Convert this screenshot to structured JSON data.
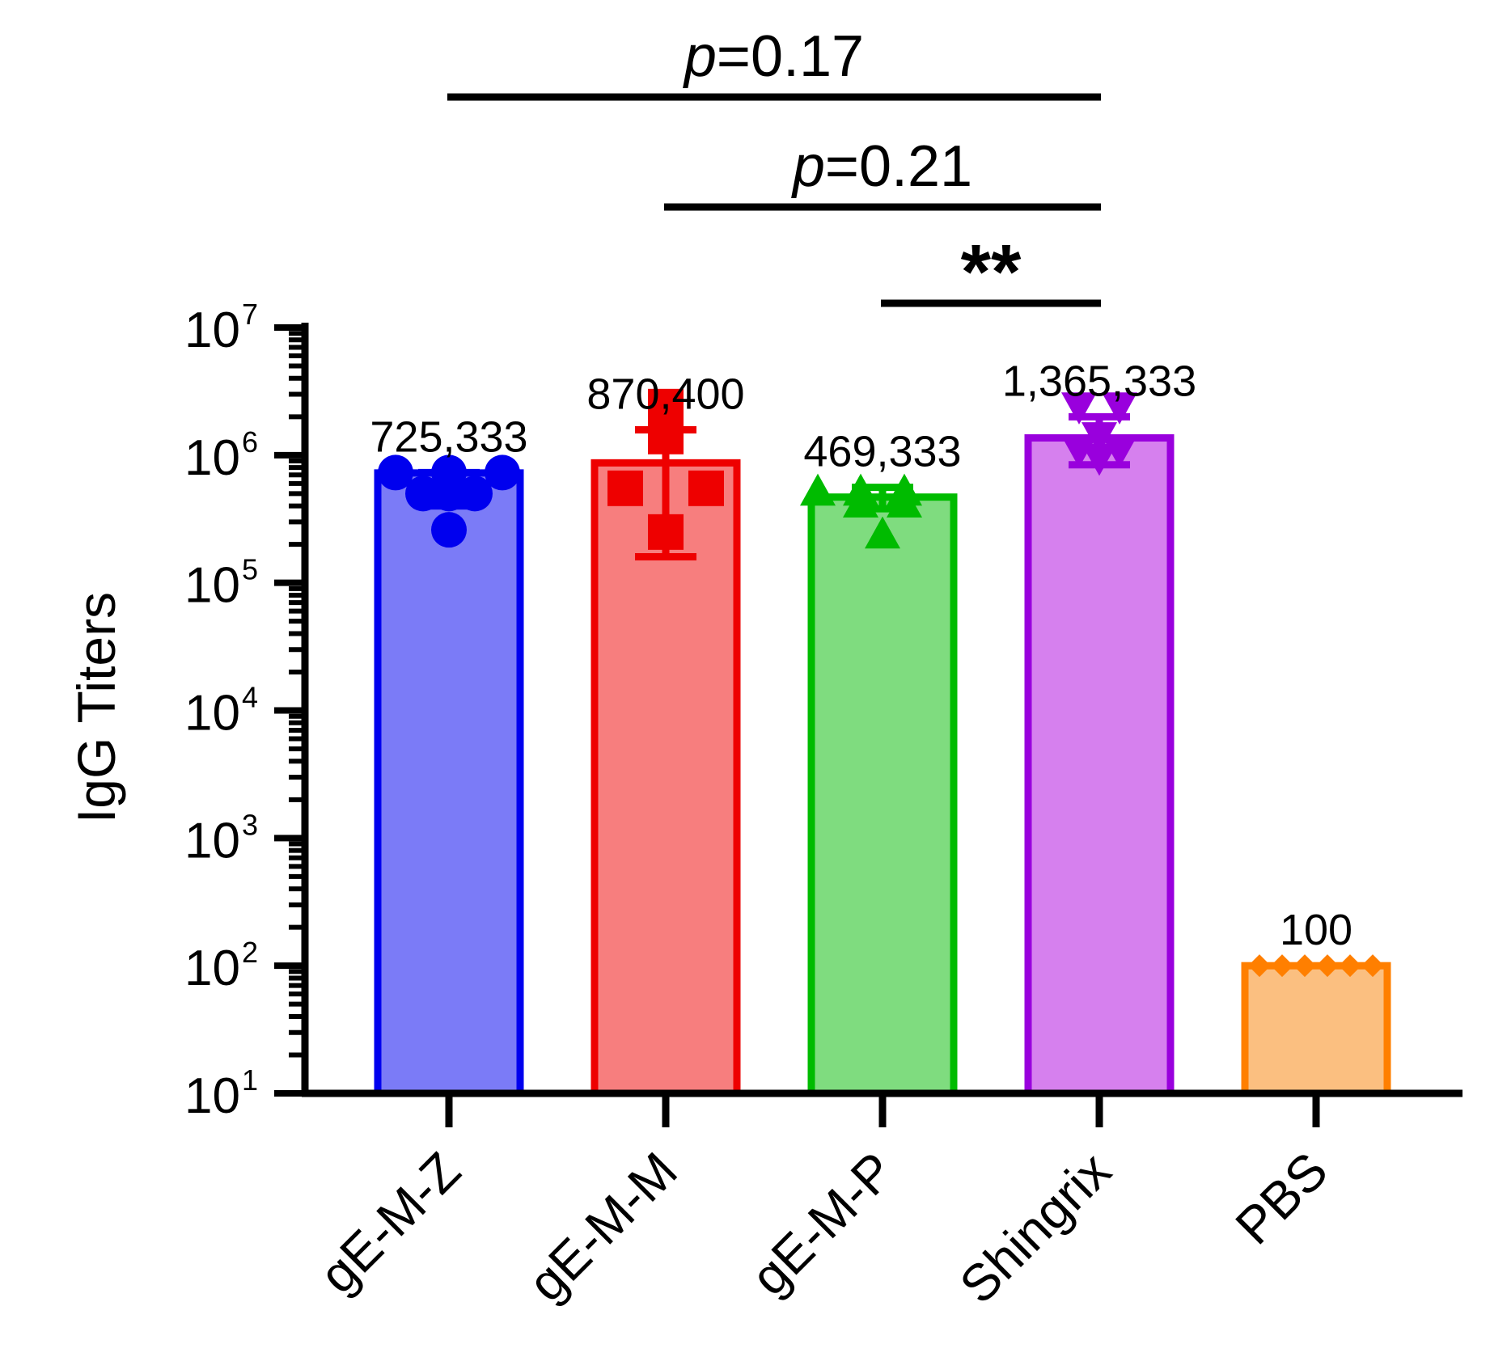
{
  "chart_data": {
    "type": "bar",
    "scale": "log",
    "categories": [
      "gE-M-Z",
      "gE-M-M",
      "gE-M-P",
      "Shingrix",
      "PBS"
    ],
    "values": [
      725333,
      870400,
      469333,
      1365333,
      100
    ],
    "value_labels": [
      "725,333",
      "870,400",
      "469,333",
      "1,365,333",
      "100"
    ],
    "error_bars": [
      {
        "low": 400000,
        "high": 730000
      },
      {
        "low": 160000,
        "high": 1580000
      },
      {
        "low": 380000,
        "high": 560000
      },
      {
        "low": 840000,
        "high": 2000000
      },
      {
        "low": 100,
        "high": 100
      }
    ],
    "points": [
      [
        730000,
        730000,
        730000,
        500000,
        500000,
        500000,
        260000
      ],
      [
        2400000,
        1400000,
        550000,
        550000,
        250000
      ],
      [
        520000,
        520000,
        520000,
        420000,
        420000,
        240000
      ],
      [
        2400000,
        2400000,
        1400000,
        1100000,
        1100000,
        950000
      ],
      [
        100,
        100,
        100,
        100,
        100,
        100
      ]
    ],
    "markers": [
      "circle",
      "square",
      "triangle-up",
      "triangle-down",
      "diamond"
    ],
    "colors": {
      "fill": [
        "#7b7bf7",
        "#f77e7e",
        "#7fdc7f",
        "#d680ee",
        "#fbbf80"
      ],
      "stroke": [
        "#0000ee",
        "#ee0000",
        "#00bb00",
        "#9900dd",
        "#ff7f00"
      ]
    },
    "title": "",
    "xlabel": "",
    "ylabel": "IgG Titers",
    "ylim": [
      10,
      10000000
    ],
    "yticks": [
      {
        "base": "10",
        "exp": "1",
        "value": 10
      },
      {
        "base": "10",
        "exp": "2",
        "value": 100
      },
      {
        "base": "10",
        "exp": "3",
        "value": 1000
      },
      {
        "base": "10",
        "exp": "4",
        "value": 10000
      },
      {
        "base": "10",
        "exp": "5",
        "value": 100000
      },
      {
        "base": "10",
        "exp": "6",
        "value": 1000000
      },
      {
        "base": "10",
        "exp": "7",
        "value": 10000000
      }
    ],
    "significance": [
      {
        "from": 0,
        "to": 3,
        "prefix": "p",
        "text": "=0.17"
      },
      {
        "from": 1,
        "to": 3,
        "prefix": "p",
        "text": "=0.21"
      },
      {
        "from": 2,
        "to": 3,
        "prefix": "",
        "text": "**"
      }
    ],
    "grid": false,
    "legend": "none"
  }
}
